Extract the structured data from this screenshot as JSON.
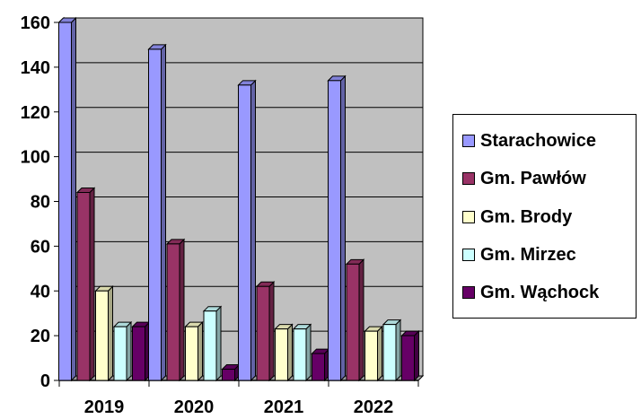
{
  "chart_data": {
    "type": "bar",
    "categories": [
      "2019",
      "2020",
      "2021",
      "2022"
    ],
    "series": [
      {
        "name": "Starachowice",
        "values": [
          160,
          148,
          132,
          134
        ],
        "color": "#9999ff"
      },
      {
        "name": "Gm. Pawłów",
        "values": [
          84,
          61,
          42,
          52
        ],
        "color": "#993366"
      },
      {
        "name": "Gm. Brody",
        "values": [
          40,
          24,
          23,
          22
        ],
        "color": "#ffffcc"
      },
      {
        "name": "Gm. Mirzec",
        "values": [
          24,
          31,
          23,
          25
        ],
        "color": "#ccffff"
      },
      {
        "name": "Gm. Wąchock",
        "values": [
          24,
          5,
          12,
          20
        ],
        "color": "#660066"
      }
    ],
    "yticks": [
      "0",
      "20",
      "40",
      "60",
      "80",
      "100",
      "120",
      "140",
      "160"
    ],
    "ylim": [
      0,
      160
    ],
    "grid": true,
    "three_d": true,
    "plot_background": "#c0c0c0",
    "legend_position": "right"
  }
}
